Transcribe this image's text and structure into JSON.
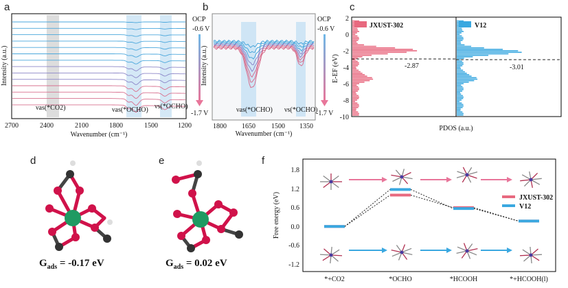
{
  "panels": {
    "a": {
      "label": "a",
      "ylabel": "Intensity (a.u.)",
      "xlabel": "Wavenumber (cm⁻¹)",
      "xticks": [
        "2700",
        "2400",
        "2100",
        "1800",
        "1500",
        "1200"
      ],
      "bands": [
        "νas(*CO2)",
        "νas(*OCHO)",
        "νs(*OCHO)"
      ],
      "legend_top": "OCP",
      "legend_v1": "-0.6 V",
      "legend_v2": "-1.7 V"
    },
    "b": {
      "label": "b",
      "ylabel": "Intensity (a.u.)",
      "xlabel": "Wavenumber (cm⁻¹)",
      "xticks": [
        "1800",
        "1650",
        "1500",
        "1350"
      ],
      "bands": [
        "νas(*OCHO)",
        "νs(*OCHO)"
      ],
      "legend_top": "OCP",
      "legend_v1": "-0.6 V",
      "legend_v2": "-1.7 V"
    },
    "c": {
      "label": "c",
      "ylabel": "E-EF (eV)",
      "xlabel": "PDOS (a.u.)",
      "yticks": [
        "2",
        "0",
        "-2",
        "-4",
        "-6",
        "-8",
        "-10"
      ],
      "left_title": "JXUST-302",
      "right_title": "V12",
      "left_value": "-2.87",
      "right_value": "-3.01"
    },
    "d": {
      "label": "d",
      "gads_prefix": "G",
      "gads_sub": "ads",
      "gads_value": " = -0.17 eV"
    },
    "e": {
      "label": "e",
      "gads_prefix": "G",
      "gads_sub": "ads",
      "gads_value": " = 0.02 eV"
    },
    "f": {
      "label": "f",
      "ylabel": "Free energy (eV)",
      "yticks": [
        "1.8",
        "1.2",
        "0.6",
        "0.0",
        "-0.6",
        "-1.2"
      ],
      "xticks": [
        "*+CO2",
        "*OCHO",
        "*HCOOH",
        "*+HCOOH(l)"
      ],
      "legend": [
        "JXUST-302",
        "V12"
      ]
    }
  },
  "chart_data": [
    {
      "type": "line",
      "panel": "f",
      "xlabel": "",
      "ylabel": "Free energy (eV)",
      "categories": [
        "*+CO2",
        "*OCHO",
        "*HCOOH",
        "*+HCOOH(l)"
      ],
      "ylim": [
        -1.4,
        2.0
      ],
      "series": [
        {
          "name": "JXUST-302",
          "color": "#e8697f",
          "values": [
            0.0,
            1.0,
            0.6,
            0.17
          ]
        },
        {
          "name": "V12",
          "color": "#3aa8e0",
          "values": [
            0.0,
            1.18,
            0.57,
            0.17
          ]
        }
      ]
    },
    {
      "type": "area",
      "panel": "c",
      "ylabel": "E-EF (eV)",
      "xlabel": "PDOS (a.u.)",
      "ylim": [
        -10,
        2
      ],
      "series": [
        {
          "name": "JXUST-302",
          "color": "#e8697f",
          "reference_line": -2.87
        },
        {
          "name": "V12",
          "color": "#3aa8e0",
          "reference_line": -3.01
        }
      ]
    }
  ]
}
